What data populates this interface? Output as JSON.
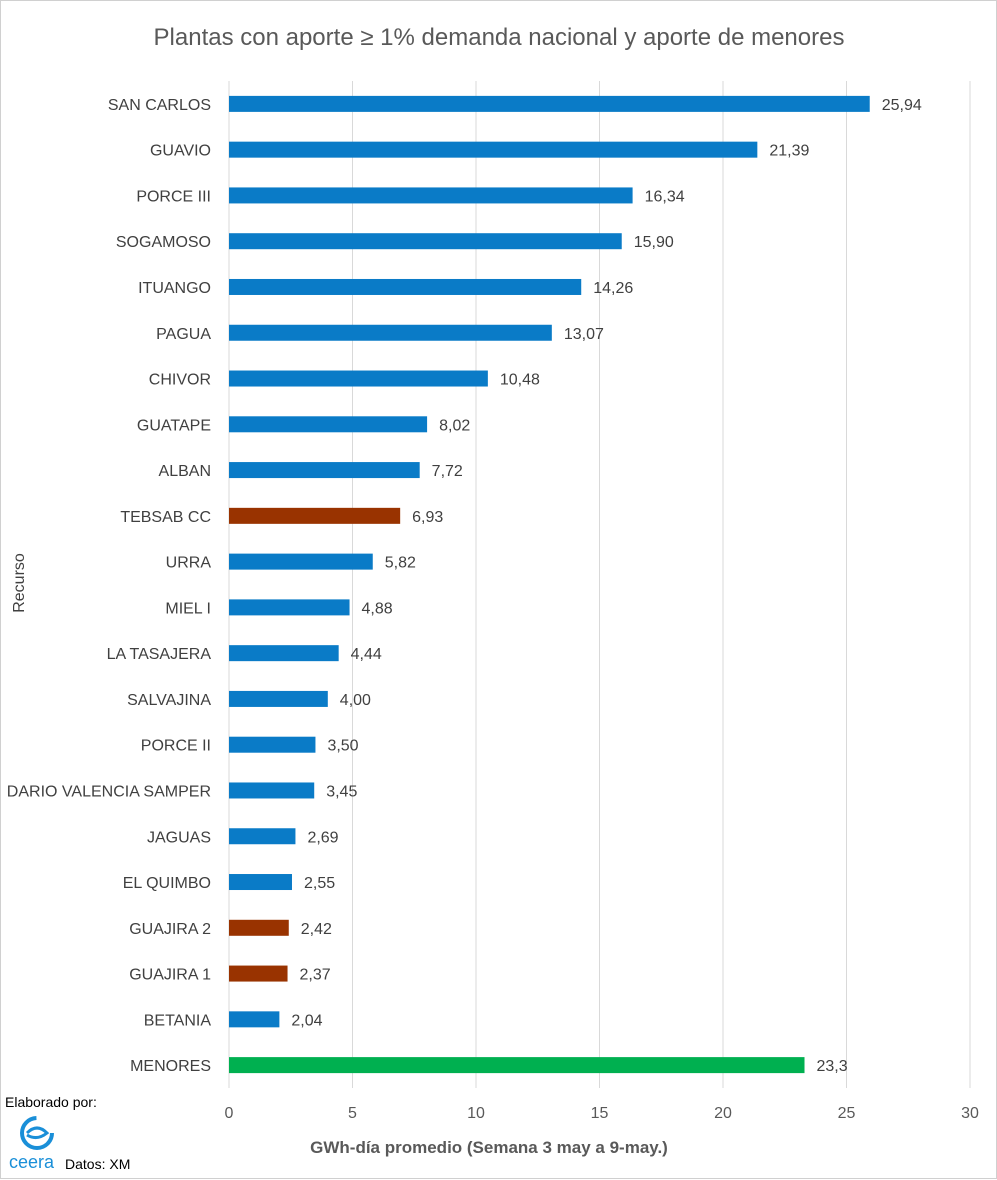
{
  "chart_data": {
    "type": "bar",
    "orientation": "horizontal",
    "title": "Plantas con aporte ≥ 1% demanda nacional y aporte de menores",
    "xlabel": "GWh-día promedio (Semana 3 may a 9-may.)",
    "ylabel": "Recurso",
    "xlim": [
      0,
      30
    ],
    "xticks": [
      0,
      5,
      10,
      15,
      20,
      25,
      30
    ],
    "grid": true,
    "legend": "none",
    "categories": [
      "SAN CARLOS",
      "GUAVIO",
      "PORCE III",
      "SOGAMOSO",
      "ITUANGO",
      "PAGUA",
      "CHIVOR",
      "GUATAPE",
      "ALBAN",
      "TEBSAB CC",
      "URRA",
      "MIEL I",
      "LA TASAJERA",
      "SALVAJINA",
      "PORCE II",
      "DARIO VALENCIA SAMPER",
      "JAGUAS",
      "EL QUIMBO",
      "GUAJIRA 2",
      "GUAJIRA 1",
      "BETANIA",
      "MENORES"
    ],
    "values": [
      25.94,
      21.39,
      16.34,
      15.9,
      14.26,
      13.07,
      10.48,
      8.02,
      7.72,
      6.93,
      5.82,
      4.88,
      4.44,
      4.0,
      3.5,
      3.45,
      2.69,
      2.55,
      2.42,
      2.37,
      2.04,
      23.3
    ],
    "data_labels": [
      "25,94",
      "21,39",
      "16,34",
      "15,90",
      "14,26",
      "13,07",
      "10,48",
      "8,02",
      "7,72",
      "6,93",
      "5,82",
      "4,88",
      "4,44",
      "4,00",
      "3,50",
      "3,45",
      "2,69",
      "2,55",
      "2,42",
      "2,37",
      "2,04",
      "23,3"
    ],
    "colors": [
      "#0a7bc7",
      "#0a7bc7",
      "#0a7bc7",
      "#0a7bc7",
      "#0a7bc7",
      "#0a7bc7",
      "#0a7bc7",
      "#0a7bc7",
      "#0a7bc7",
      "#993300",
      "#0a7bc7",
      "#0a7bc7",
      "#0a7bc7",
      "#0a7bc7",
      "#0a7bc7",
      "#0a7bc7",
      "#0a7bc7",
      "#0a7bc7",
      "#993300",
      "#993300",
      "#0a7bc7",
      "#00b050"
    ]
  },
  "footer": {
    "credit": "Elaborado por:",
    "logo_text": "ceera",
    "source": "Datos: XM"
  }
}
